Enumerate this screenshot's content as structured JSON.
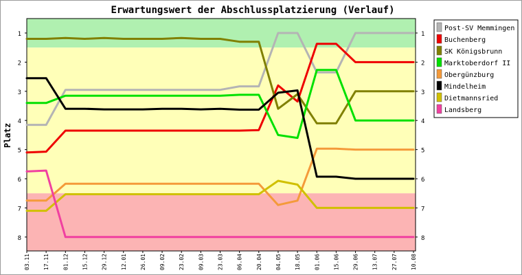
{
  "chart_data": {
    "type": "line",
    "title": "Erwartungswert der Abschlussplatzierung (Verlauf)",
    "xlabel": "",
    "ylabel": "Platz",
    "ylim": [
      8.5,
      0.5
    ],
    "y_ticks": [
      "1",
      "2",
      "3",
      "4",
      "5",
      "6",
      "7",
      "8"
    ],
    "y_reversed": true,
    "grid": false,
    "legend_position": "right",
    "zones": [
      {
        "from": 0.5,
        "to": 1.5,
        "color": "#b0f0b0"
      },
      {
        "from": 1.5,
        "to": 6.5,
        "color": "#ffffb8"
      },
      {
        "from": 6.5,
        "to": 8.5,
        "color": "#fcb4b4"
      }
    ],
    "x": [
      "03.11",
      "17.11",
      "01.12",
      "15.12",
      "29.12",
      "12.01",
      "26.01",
      "09.02",
      "23.02",
      "09.03",
      "23.03",
      "06.04",
      "20.04",
      "04.05",
      "18.05",
      "01.06",
      "15.06",
      "29.06",
      "13.07",
      "27.07",
      "10.08"
    ],
    "series": [
      {
        "name": "Post-SV Memmingen",
        "color": "#b4b4b4",
        "values": [
          4.15,
          4.15,
          2.95,
          2.95,
          2.95,
          2.95,
          2.95,
          2.95,
          2.95,
          2.95,
          2.95,
          2.83,
          2.83,
          1.0,
          1.0,
          2.35,
          2.35,
          1.0,
          1.0,
          1.0,
          1.0
        ]
      },
      {
        "name": "Buchenberg",
        "color": "#ee0000",
        "values": [
          5.1,
          5.07,
          4.35,
          4.35,
          4.35,
          4.35,
          4.35,
          4.35,
          4.35,
          4.35,
          4.35,
          4.35,
          4.33,
          2.8,
          3.35,
          1.37,
          1.37,
          2.0,
          2.0,
          2.0,
          2.0
        ]
      },
      {
        "name": "SK Königsbrunn",
        "color": "#808000",
        "values": [
          1.2,
          1.2,
          1.17,
          1.2,
          1.17,
          1.2,
          1.2,
          1.2,
          1.17,
          1.2,
          1.2,
          1.3,
          1.3,
          3.6,
          3.1,
          4.1,
          4.1,
          3.0,
          3.0,
          3.0,
          3.0
        ]
      },
      {
        "name": "Marktoberdorf II",
        "color": "#00e000",
        "values": [
          3.4,
          3.4,
          3.15,
          3.15,
          3.15,
          3.15,
          3.15,
          3.15,
          3.15,
          3.15,
          3.15,
          3.12,
          3.12,
          4.5,
          4.6,
          2.27,
          2.27,
          4.0,
          4.0,
          4.0,
          4.0
        ]
      },
      {
        "name": "Obergünzburg",
        "color": "#f49a3a",
        "values": [
          6.75,
          6.75,
          6.17,
          6.17,
          6.17,
          6.17,
          6.17,
          6.17,
          6.17,
          6.17,
          6.17,
          6.17,
          6.17,
          6.9,
          6.75,
          4.97,
          4.97,
          5.0,
          5.0,
          5.0,
          5.0
        ]
      },
      {
        "name": "Mindelheim",
        "color": "#000000",
        "values": [
          2.55,
          2.55,
          3.6,
          3.6,
          3.62,
          3.62,
          3.62,
          3.6,
          3.6,
          3.62,
          3.6,
          3.63,
          3.63,
          3.05,
          2.97,
          5.93,
          5.93,
          6.0,
          6.0,
          6.0,
          6.0
        ]
      },
      {
        "name": "Dietmannsried",
        "color": "#d0c000",
        "values": [
          7.1,
          7.1,
          6.53,
          6.53,
          6.53,
          6.53,
          6.53,
          6.53,
          6.53,
          6.53,
          6.53,
          6.53,
          6.53,
          6.07,
          6.2,
          7.0,
          7.0,
          7.0,
          7.0,
          7.0,
          7.0
        ]
      },
      {
        "name": "Landsberg",
        "color": "#f040a0",
        "values": [
          5.75,
          5.72,
          8.0,
          8.0,
          8.0,
          8.0,
          8.0,
          8.0,
          8.0,
          8.0,
          8.0,
          8.0,
          8.0,
          8.0,
          8.0,
          8.0,
          8.0,
          8.0,
          8.0,
          8.0,
          8.0
        ]
      }
    ]
  }
}
